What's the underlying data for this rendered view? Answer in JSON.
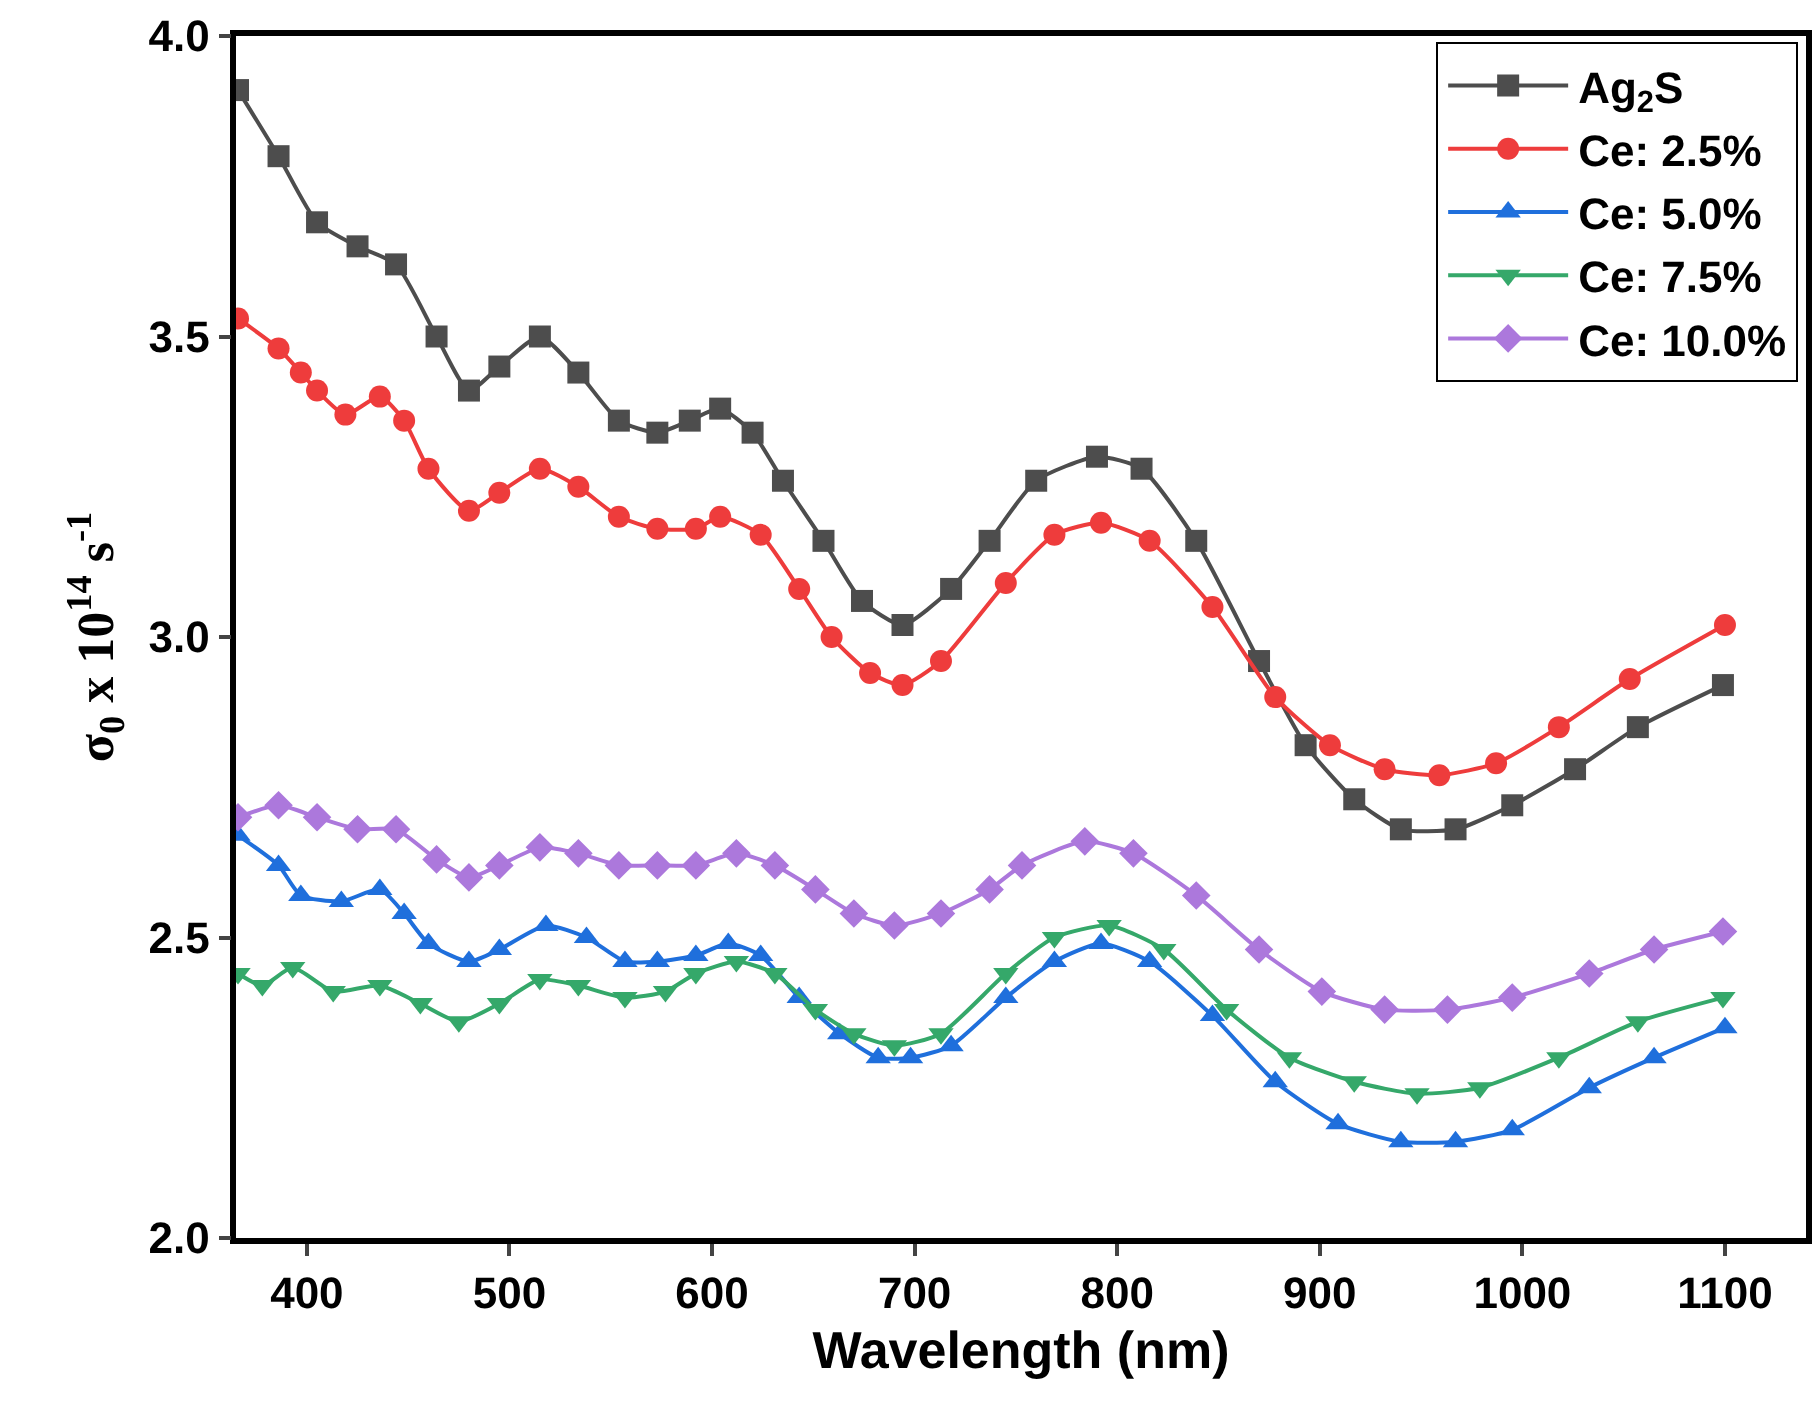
{
  "chart_data": {
    "type": "line",
    "xlabel": "Wavelength (nm)",
    "ylabel": "σ$_{0}$ x 10$^{14}$ s$^{-1}$",
    "xlim": [
      365,
      1140
    ],
    "xticks": [
      400,
      500,
      600,
      700,
      800,
      900,
      1000,
      1100
    ],
    "ylim": [
      2.0,
      4.0
    ],
    "yticks": [
      {
        "value": 2.0,
        "label": "2.0"
      },
      {
        "value": 2.5,
        "label": "2.5"
      },
      {
        "value": 3.0,
        "label": "3.0"
      },
      {
        "value": 3.5,
        "label": "3.5"
      },
      {
        "value": 4.0,
        "label": "4.0"
      }
    ],
    "legend": "top right",
    "line_style": "solid",
    "series": [
      {
        "name": "Ag$_{2}$S",
        "color": "#4d4d4d",
        "marker": "square",
        "x": [
          366,
          386,
          405,
          425,
          444,
          464,
          480,
          495,
          515,
          534,
          554,
          573,
          589,
          604,
          620,
          635,
          655,
          674,
          694,
          718,
          737,
          760,
          790,
          812,
          839,
          870,
          893,
          917,
          940,
          967,
          995,
          1026,
          1057,
          1099
        ],
        "values": [
          3.91,
          3.8,
          3.69,
          3.65,
          3.62,
          3.5,
          3.41,
          3.45,
          3.5,
          3.44,
          3.36,
          3.34,
          3.36,
          3.38,
          3.34,
          3.26,
          3.16,
          3.06,
          3.02,
          3.08,
          3.16,
          3.26,
          3.3,
          3.28,
          3.16,
          2.96,
          2.82,
          2.73,
          2.68,
          2.68,
          2.72,
          2.78,
          2.85,
          2.92
        ]
      },
      {
        "name": "Ce: 2.5%",
        "color": "#ee3c3c",
        "marker": "circle",
        "x": [
          366,
          386,
          397,
          405,
          419,
          436,
          448,
          460,
          480,
          495,
          515,
          534,
          554,
          573,
          592,
          604,
          624,
          643,
          659,
          678,
          694,
          713,
          745,
          769,
          792,
          816,
          847,
          878,
          905,
          932,
          959,
          987,
          1018,
          1053,
          1100
        ],
        "values": [
          3.53,
          3.48,
          3.44,
          3.41,
          3.37,
          3.4,
          3.36,
          3.28,
          3.21,
          3.24,
          3.28,
          3.25,
          3.2,
          3.18,
          3.18,
          3.2,
          3.17,
          3.08,
          3.0,
          2.94,
          2.92,
          2.96,
          3.09,
          3.17,
          3.19,
          3.16,
          3.05,
          2.9,
          2.82,
          2.78,
          2.77,
          2.79,
          2.85,
          2.93,
          3.02
        ]
      },
      {
        "name": "Ce: 5.0%",
        "color": "#1f6fdc",
        "marker": "triangle",
        "x": [
          366,
          386,
          397,
          417,
          436,
          448,
          460,
          480,
          495,
          518,
          538,
          557,
          573,
          592,
          608,
          624,
          643,
          663,
          682,
          698,
          718,
          745,
          769,
          792,
          816,
          847,
          878,
          909,
          940,
          967,
          995,
          1033,
          1065,
          1100
        ],
        "values": [
          2.67,
          2.62,
          2.57,
          2.56,
          2.58,
          2.54,
          2.49,
          2.46,
          2.48,
          2.52,
          2.5,
          2.46,
          2.46,
          2.47,
          2.49,
          2.47,
          2.4,
          2.34,
          2.3,
          2.3,
          2.32,
          2.4,
          2.46,
          2.49,
          2.46,
          2.37,
          2.26,
          2.19,
          2.16,
          2.16,
          2.18,
          2.25,
          2.3,
          2.35
        ]
      },
      {
        "name": "Ce: 7.5%",
        "color": "#35a86a",
        "marker": "triangle-down",
        "x": [
          366,
          378,
          393,
          413,
          436,
          456,
          475,
          495,
          515,
          534,
          557,
          577,
          592,
          612,
          631,
          651,
          670,
          690,
          713,
          745,
          769,
          796,
          823,
          854,
          885,
          917,
          948,
          979,
          1018,
          1057,
          1099
        ],
        "values": [
          2.44,
          2.42,
          2.45,
          2.41,
          2.42,
          2.39,
          2.36,
          2.39,
          2.43,
          2.42,
          2.4,
          2.41,
          2.44,
          2.46,
          2.44,
          2.38,
          2.34,
          2.32,
          2.34,
          2.44,
          2.5,
          2.52,
          2.48,
          2.38,
          2.3,
          2.26,
          2.24,
          2.25,
          2.3,
          2.36,
          2.4
        ]
      },
      {
        "name": "Ce: 10.0%",
        "color": "#ac78dc",
        "marker": "diamond",
        "x": [
          366,
          386,
          405,
          425,
          444,
          464,
          480,
          495,
          515,
          534,
          554,
          573,
          592,
          612,
          631,
          651,
          670,
          690,
          713,
          737,
          753,
          784,
          808,
          839,
          870,
          901,
          932,
          963,
          995,
          1033,
          1065,
          1099
        ],
        "values": [
          2.7,
          2.72,
          2.7,
          2.68,
          2.68,
          2.63,
          2.6,
          2.62,
          2.65,
          2.64,
          2.62,
          2.62,
          2.62,
          2.64,
          2.62,
          2.58,
          2.54,
          2.52,
          2.54,
          2.58,
          2.62,
          2.66,
          2.64,
          2.57,
          2.48,
          2.41,
          2.38,
          2.38,
          2.4,
          2.44,
          2.48,
          2.51
        ]
      }
    ]
  }
}
